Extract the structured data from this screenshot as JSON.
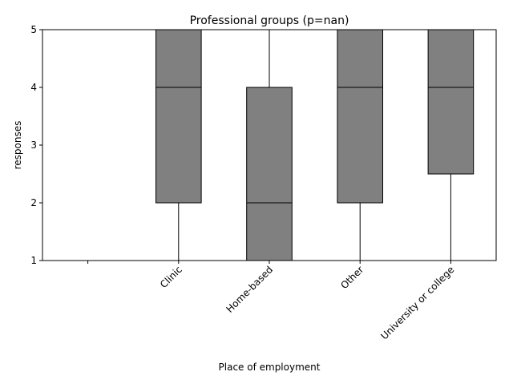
{
  "chart_data": {
    "type": "box",
    "title": "Professional groups (p=nan)",
    "xlabel": "Place of employment",
    "ylabel": "responses",
    "ylim": [
      1,
      5
    ],
    "yticks": [
      1,
      2,
      3,
      4,
      5
    ],
    "grid": false,
    "categories": [
      "",
      "Clinic",
      "Home-based",
      "Other",
      "University or college"
    ],
    "boxes": [
      null,
      {
        "whisker_low": 1,
        "q1": 2,
        "median": 4,
        "q3": 5,
        "whisker_high": 5
      },
      {
        "whisker_low": 1,
        "q1": 1,
        "median": 2,
        "q3": 4,
        "whisker_high": 5
      },
      {
        "whisker_low": 1,
        "q1": 2,
        "median": 4,
        "q3": 5,
        "whisker_high": 5
      },
      {
        "whisker_low": 1,
        "q1": 2.5,
        "median": 4,
        "q3": 5,
        "whisker_high": 5
      }
    ],
    "box_color": "#808080",
    "edge_color": "#000000"
  }
}
